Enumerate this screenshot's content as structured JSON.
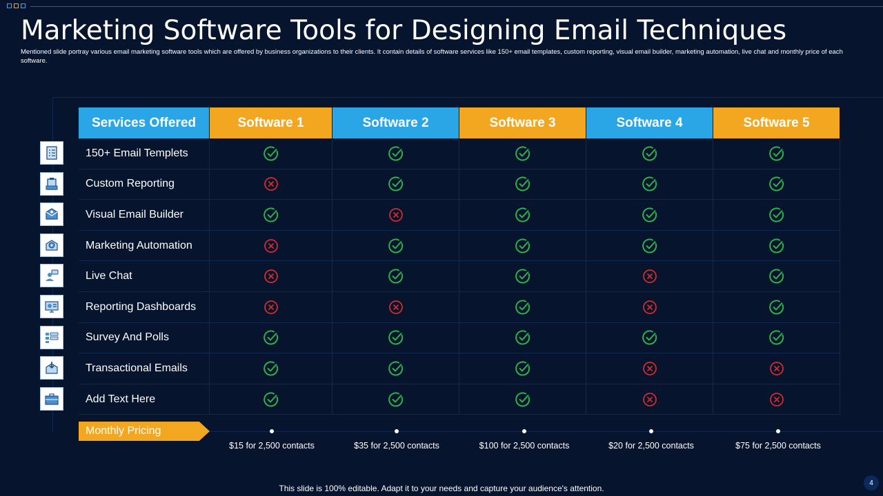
{
  "slide": {
    "title": "Marketing Software Tools for Designing Email Techniques",
    "subtitle": "Mentioned slide portray various email marketing software tools which are offered by business organizations to their clients. It contain details of software services like 150+ email templates, custom reporting, visual email builder, marketing automation, live chat and monthly price of each software.",
    "footer": "This slide is 100% editable. Adapt it to your needs and capture your audience's attention.",
    "page_number": "4"
  },
  "colors": {
    "background": "#06142e",
    "blue": "#2aa5e6",
    "orange": "#f3a720",
    "check": "#2bb34a",
    "cross": "#d52b2b"
  },
  "table": {
    "headers": [
      "Services Offered",
      "Software  1",
      "Software 2",
      "Software 3",
      "Software 4",
      "Software 5"
    ],
    "rows": [
      {
        "label": "150+ Email Templets",
        "icon": "checklist-icon",
        "values": [
          true,
          true,
          true,
          true,
          true
        ]
      },
      {
        "label": "Custom Reporting",
        "icon": "clipboard-report-icon",
        "values": [
          false,
          true,
          true,
          true,
          true
        ]
      },
      {
        "label": "Visual Email Builder",
        "icon": "envelope-icon",
        "values": [
          true,
          false,
          true,
          true,
          true
        ]
      },
      {
        "label": "Marketing Automation",
        "icon": "email-gear-icon",
        "values": [
          false,
          true,
          true,
          true,
          true
        ]
      },
      {
        "label": "Live Chat",
        "icon": "chat-person-icon",
        "values": [
          false,
          true,
          true,
          false,
          true
        ]
      },
      {
        "label": "Reporting Dashboards",
        "icon": "monitor-dashboard-icon",
        "values": [
          false,
          false,
          true,
          false,
          true
        ]
      },
      {
        "label": "Survey And Polls",
        "icon": "survey-list-icon",
        "values": [
          true,
          true,
          true,
          true,
          true
        ]
      },
      {
        "label": "Transactional Emails",
        "icon": "inbox-download-icon",
        "values": [
          true,
          true,
          true,
          false,
          false
        ]
      },
      {
        "label": "Add Text Here",
        "icon": "briefcase-icon",
        "values": [
          true,
          true,
          true,
          false,
          false
        ]
      }
    ]
  },
  "pricing": {
    "label": "Monthly  Pricing",
    "values": [
      "$15 for 2,500 contacts",
      "$35 for 2,500 contacts",
      "$100 for 2,500 contacts",
      "$20 for 2,500 contacts",
      "$75 for 2,500 contacts"
    ]
  }
}
